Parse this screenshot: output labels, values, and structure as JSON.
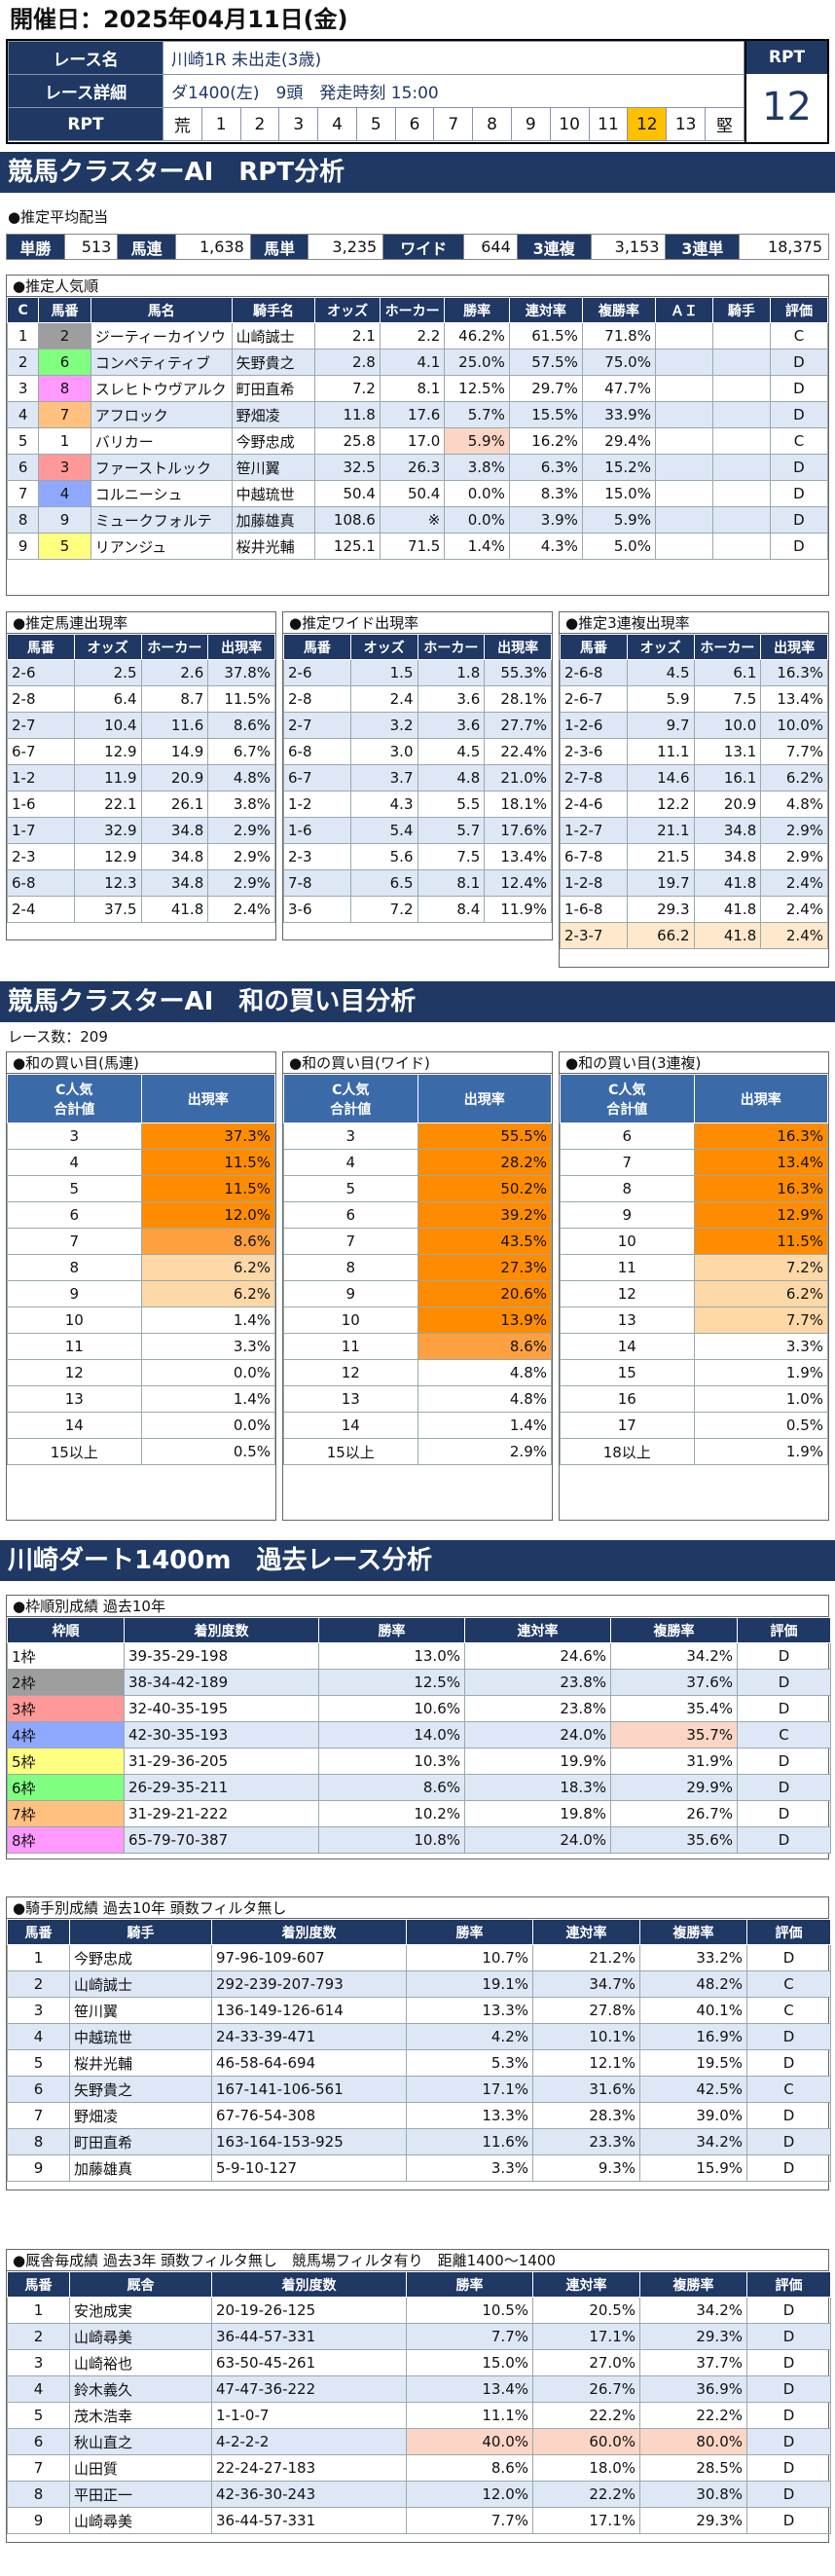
{
  "header": {
    "date_text": "開催日：2025年04月11日(金)"
  },
  "race": {
    "name_label": "レース名",
    "name_value": "川崎1R 未出走(3歳)",
    "detail_label": "レース詳細",
    "detail_value": "ダ1400(左)　9頭　発走時刻 15:00",
    "rpt_label": "RPT",
    "rpt_cells": [
      "荒",
      "1",
      "2",
      "3",
      "4",
      "5",
      "6",
      "7",
      "8",
      "9",
      "10",
      "11",
      "12",
      "13",
      "堅"
    ],
    "rpt_highlight": "12",
    "rpt_box_label": "RPT",
    "rpt_box_value": "12"
  },
  "sec1": {
    "title": "競馬クラスターAI　RPT分析",
    "payout_title": "●推定平均配当",
    "payouts": [
      {
        "label": "単勝",
        "value": "513"
      },
      {
        "label": "馬連",
        "value": "1,638"
      },
      {
        "label": "馬単",
        "value": "3,235"
      },
      {
        "label": "ワイド",
        "value": "644"
      },
      {
        "label": "3連複",
        "value": "3,153"
      },
      {
        "label": "3連単",
        "value": "18,375"
      }
    ],
    "pop_title": "●推定人気順",
    "pop_headers": [
      "C",
      "馬番",
      "馬名",
      "騎手名",
      "オッズ",
      "ホーカー",
      "勝率",
      "連対率",
      "複勝率",
      "ＡＩ",
      "騎手",
      "評価"
    ],
    "pop_rows": [
      [
        "1",
        "2",
        "ジーティーカイソウ",
        "山崎誠士",
        "2.1",
        "2.2",
        "46.2%",
        "61.5%",
        "71.8%",
        "",
        "",
        "C"
      ],
      [
        "2",
        "6",
        "コンペティティブ",
        "矢野貴之",
        "2.8",
        "4.1",
        "25.0%",
        "57.5%",
        "75.0%",
        "",
        "",
        "D"
      ],
      [
        "3",
        "8",
        "スレヒトウヴアルク",
        "町田直希",
        "7.2",
        "8.1",
        "12.5%",
        "29.7%",
        "47.7%",
        "",
        "",
        "D"
      ],
      [
        "4",
        "7",
        "アフロック",
        "野畑凌",
        "11.8",
        "17.6",
        "5.7%",
        "15.5%",
        "33.9%",
        "",
        "",
        "D"
      ],
      [
        "5",
        "1",
        "バリカー",
        "今野忠成",
        "25.8",
        "17.0",
        "5.9%",
        "16.2%",
        "29.4%",
        "",
        "",
        "C"
      ],
      [
        "6",
        "3",
        "ファーストルック",
        "笹川翼",
        "32.5",
        "26.3",
        "3.8%",
        "6.3%",
        "15.2%",
        "",
        "",
        "D"
      ],
      [
        "7",
        "4",
        "コルニーシュ",
        "中越琉世",
        "50.4",
        "50.4",
        "0.0%",
        "8.3%",
        "15.0%",
        "",
        "",
        "D"
      ],
      [
        "8",
        "9",
        "ミュークフォルテ",
        "加藤雄真",
        "108.6",
        "※",
        "0.0%",
        "3.9%",
        "5.9%",
        "",
        "",
        "D"
      ],
      [
        "9",
        "5",
        "リアンジュ",
        "桜井光輔",
        "125.1",
        "71.5",
        "1.4%",
        "4.3%",
        "5.0%",
        "",
        "",
        "D"
      ]
    ]
  },
  "umaren": {
    "title": "●推定馬連出現率",
    "headers": [
      "馬番",
      "オッズ",
      "ホーカー",
      "出現率"
    ],
    "rows": [
      [
        "2-6",
        "2.5",
        "2.6",
        "37.8%"
      ],
      [
        "2-8",
        "6.4",
        "8.7",
        "11.5%"
      ],
      [
        "2-7",
        "10.4",
        "11.6",
        "8.6%"
      ],
      [
        "6-7",
        "12.9",
        "14.9",
        "6.7%"
      ],
      [
        "1-2",
        "11.9",
        "20.9",
        "4.8%"
      ],
      [
        "1-6",
        "22.1",
        "26.1",
        "3.8%"
      ],
      [
        "1-7",
        "32.9",
        "34.8",
        "2.9%"
      ],
      [
        "2-3",
        "12.9",
        "34.8",
        "2.9%"
      ],
      [
        "6-8",
        "12.3",
        "34.8",
        "2.9%"
      ],
      [
        "2-4",
        "37.5",
        "41.8",
        "2.4%"
      ]
    ]
  },
  "wide": {
    "title": "●推定ワイド出現率",
    "headers": [
      "馬番",
      "オッズ",
      "ホーカー",
      "出現率"
    ],
    "rows": [
      [
        "2-6",
        "1.5",
        "1.8",
        "55.3%"
      ],
      [
        "2-8",
        "2.4",
        "3.6",
        "28.1%"
      ],
      [
        "2-7",
        "3.2",
        "3.6",
        "27.7%"
      ],
      [
        "6-8",
        "3.0",
        "4.5",
        "22.4%"
      ],
      [
        "6-7",
        "3.7",
        "4.8",
        "21.0%"
      ],
      [
        "1-2",
        "4.3",
        "5.5",
        "18.1%"
      ],
      [
        "1-6",
        "5.4",
        "5.7",
        "17.6%"
      ],
      [
        "2-3",
        "5.6",
        "7.5",
        "13.4%"
      ],
      [
        "7-8",
        "6.5",
        "8.1",
        "12.4%"
      ],
      [
        "3-6",
        "7.2",
        "8.4",
        "11.9%"
      ]
    ]
  },
  "sanren": {
    "title": "●推定3連複出現率",
    "headers": [
      "馬番",
      "オッズ",
      "ホーカー",
      "出現率"
    ],
    "rows": [
      [
        "2-6-8",
        "4.5",
        "6.1",
        "16.3%"
      ],
      [
        "2-6-7",
        "5.9",
        "7.5",
        "13.4%"
      ],
      [
        "1-2-6",
        "9.7",
        "10.0",
        "10.0%"
      ],
      [
        "2-3-6",
        "11.1",
        "13.1",
        "7.7%"
      ],
      [
        "2-7-8",
        "14.6",
        "16.1",
        "6.2%"
      ],
      [
        "2-4-6",
        "12.2",
        "20.9",
        "4.8%"
      ],
      [
        "1-2-7",
        "21.1",
        "34.8",
        "2.9%"
      ],
      [
        "6-7-8",
        "21.5",
        "34.8",
        "2.9%"
      ],
      [
        "1-2-8",
        "19.7",
        "41.8",
        "2.4%"
      ],
      [
        "1-6-8",
        "29.3",
        "41.8",
        "2.4%"
      ],
      [
        "2-3-7",
        "66.2",
        "41.8",
        "2.4%"
      ]
    ]
  },
  "sec2": {
    "title": "競馬クラスターAI　和の買い目分析",
    "race_count": "レース数：209",
    "tables": [
      {
        "title": "●和の買い目(馬連)",
        "h1": "C人気\n合計値",
        "h2": "出現率",
        "rows": [
          [
            "3",
            "37.3%"
          ],
          [
            "4",
            "11.5%"
          ],
          [
            "5",
            "11.5%"
          ],
          [
            "6",
            "12.0%"
          ],
          [
            "7",
            "8.6%"
          ],
          [
            "8",
            "6.2%"
          ],
          [
            "9",
            "6.2%"
          ],
          [
            "10",
            "1.4%"
          ],
          [
            "11",
            "3.3%"
          ],
          [
            "12",
            "0.0%"
          ],
          [
            "13",
            "1.4%"
          ],
          [
            "14",
            "0.0%"
          ],
          [
            "15以上",
            "0.5%"
          ]
        ]
      },
      {
        "title": "●和の買い目(ワイド)",
        "h1": "C人気\n合計値",
        "h2": "出現率",
        "rows": [
          [
            "3",
            "55.5%"
          ],
          [
            "4",
            "28.2%"
          ],
          [
            "5",
            "50.2%"
          ],
          [
            "6",
            "39.2%"
          ],
          [
            "7",
            "43.5%"
          ],
          [
            "8",
            "27.3%"
          ],
          [
            "9",
            "20.6%"
          ],
          [
            "10",
            "13.9%"
          ],
          [
            "11",
            "8.6%"
          ],
          [
            "12",
            "4.8%"
          ],
          [
            "13",
            "4.8%"
          ],
          [
            "14",
            "1.4%"
          ],
          [
            "15以上",
            "2.9%"
          ]
        ]
      },
      {
        "title": "●和の買い目(3連複)",
        "h1": "C人気\n合計値",
        "h2": "出現率",
        "rows": [
          [
            "6",
            "16.3%"
          ],
          [
            "7",
            "13.4%"
          ],
          [
            "8",
            "16.3%"
          ],
          [
            "9",
            "12.9%"
          ],
          [
            "10",
            "11.5%"
          ],
          [
            "11",
            "7.2%"
          ],
          [
            "12",
            "6.2%"
          ],
          [
            "13",
            "7.7%"
          ],
          [
            "14",
            "3.3%"
          ],
          [
            "15",
            "1.9%"
          ],
          [
            "16",
            "1.0%"
          ],
          [
            "17",
            "0.5%"
          ],
          [
            "18以上",
            "1.9%"
          ]
        ]
      }
    ]
  },
  "sec3": {
    "title": "川崎ダート1400m　過去レース分析",
    "waku_title": "●枠順別成績 過去10年",
    "waku_headers": [
      "枠順",
      "着別度数",
      "勝率",
      "連対率",
      "複勝率",
      "評価"
    ],
    "waku_rows": [
      [
        "1枠",
        "39-35-29-198",
        "13.0%",
        "24.6%",
        "34.2%",
        "D"
      ],
      [
        "2枠",
        "38-34-42-189",
        "12.5%",
        "23.8%",
        "37.6%",
        "D"
      ],
      [
        "3枠",
        "32-40-35-195",
        "10.6%",
        "23.8%",
        "35.4%",
        "D"
      ],
      [
        "4枠",
        "42-30-35-193",
        "14.0%",
        "24.0%",
        "35.7%",
        "C"
      ],
      [
        "5枠",
        "31-29-36-205",
        "10.3%",
        "19.9%",
        "31.9%",
        "D"
      ],
      [
        "6枠",
        "26-29-35-211",
        "8.6%",
        "18.3%",
        "29.9%",
        "D"
      ],
      [
        "7枠",
        "31-29-21-222",
        "10.2%",
        "19.8%",
        "26.7%",
        "D"
      ],
      [
        "8枠",
        "65-79-70-387",
        "10.8%",
        "24.0%",
        "35.6%",
        "D"
      ]
    ],
    "jockey_title": "●騎手別成績 過去10年 頭数フィルタ無し",
    "jockey_headers": [
      "馬番",
      "騎手",
      "着別度数",
      "勝率",
      "連対率",
      "複勝率",
      "評価"
    ],
    "jockey_rows": [
      [
        "1",
        "今野忠成",
        "97-96-109-607",
        "10.7%",
        "21.2%",
        "33.2%",
        "D"
      ],
      [
        "2",
        "山崎誠士",
        "292-239-207-793",
        "19.1%",
        "34.7%",
        "48.2%",
        "C"
      ],
      [
        "3",
        "笹川翼",
        "136-149-126-614",
        "13.3%",
        "27.8%",
        "40.1%",
        "C"
      ],
      [
        "4",
        "中越琉世",
        "24-33-39-471",
        "4.2%",
        "10.1%",
        "16.9%",
        "D"
      ],
      [
        "5",
        "桜井光輔",
        "46-58-64-694",
        "5.3%",
        "12.1%",
        "19.5%",
        "D"
      ],
      [
        "6",
        "矢野貴之",
        "167-141-106-561",
        "17.1%",
        "31.6%",
        "42.5%",
        "C"
      ],
      [
        "7",
        "野畑凌",
        "67-76-54-308",
        "13.3%",
        "28.3%",
        "39.0%",
        "D"
      ],
      [
        "8",
        "町田直希",
        "163-164-153-925",
        "11.6%",
        "23.3%",
        "34.2%",
        "D"
      ],
      [
        "9",
        "加藤雄真",
        "5-9-10-127",
        "3.3%",
        "9.3%",
        "15.9%",
        "D"
      ]
    ],
    "trainer_title": "●厩舎毎成績 過去3年 頭数フィルタ無し　競馬場フィルタ有り　距離1400～1400",
    "trainer_headers": [
      "馬番",
      "厩舎",
      "着別度数",
      "勝率",
      "連対率",
      "複勝率",
      "評価"
    ],
    "trainer_rows": [
      [
        "1",
        "安池成実",
        "20-19-26-125",
        "10.5%",
        "20.5%",
        "34.2%",
        "D"
      ],
      [
        "2",
        "山崎尋美",
        "36-44-57-331",
        "7.7%",
        "17.1%",
        "29.3%",
        "D"
      ],
      [
        "3",
        "山崎裕也",
        "63-50-45-261",
        "15.0%",
        "27.0%",
        "37.7%",
        "D"
      ],
      [
        "4",
        "鈴木義久",
        "47-47-36-222",
        "13.4%",
        "26.7%",
        "36.9%",
        "D"
      ],
      [
        "5",
        "茂木浩幸",
        "1-1-0-7",
        "11.1%",
        "22.2%",
        "22.2%",
        "D"
      ],
      [
        "6",
        "秋山直之",
        "4-2-2-2",
        "40.0%",
        "60.0%",
        "80.0%",
        "D"
      ],
      [
        "7",
        "山田質",
        "22-24-27-183",
        "8.6%",
        "18.0%",
        "28.5%",
        "D"
      ],
      [
        "8",
        "平田正一",
        "42-36-30-243",
        "12.0%",
        "22.2%",
        "30.8%",
        "D"
      ],
      [
        "9",
        "山崎尋美",
        "36-44-57-331",
        "7.7%",
        "17.1%",
        "29.3%",
        "D"
      ]
    ]
  },
  "colors": {
    "navy": "#1f3864",
    "waku": [
      "#ffffff",
      "#9e9e9e",
      "#ff9999",
      "#8fa8ff",
      "#ffff80",
      "#80ff80",
      "#ffc080",
      "#ff99ff"
    ]
  }
}
